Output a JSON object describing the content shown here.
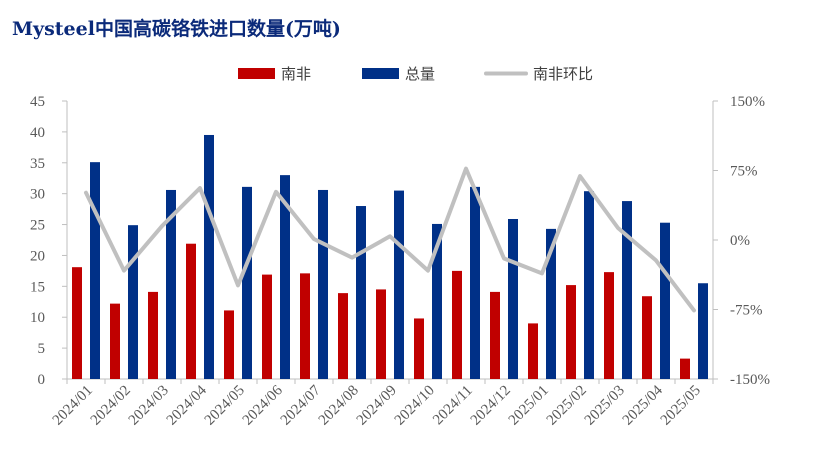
{
  "chart_data": {
    "type": "bar",
    "title": "Mysteel中国高碳铬铁进口数量(万吨)",
    "categories": [
      "2024/01",
      "2024/02",
      "2024/03",
      "2024/04",
      "2024/05",
      "2024/06",
      "2024/07",
      "2024/08",
      "2024/09",
      "2024/10",
      "2024/11",
      "2024/12",
      "2025/01",
      "2025/02",
      "2025/03",
      "2025/04",
      "2025/05"
    ],
    "series": [
      {
        "name": "南非",
        "kind": "bar",
        "axis": "left",
        "color": "#c00000",
        "values": [
          18.1,
          12.2,
          14.1,
          21.9,
          11.1,
          16.9,
          17.1,
          13.9,
          14.5,
          9.8,
          17.5,
          14.1,
          9.0,
          15.2,
          17.3,
          13.4,
          3.3
        ]
      },
      {
        "name": "总量",
        "kind": "bar",
        "axis": "left",
        "color": "#003087",
        "values": [
          35.1,
          24.9,
          30.6,
          39.5,
          31.1,
          33.0,
          30.6,
          28.0,
          30.5,
          25.1,
          31.1,
          25.9,
          24.3,
          30.4,
          28.8,
          25.3,
          15.5
        ]
      },
      {
        "name": "南非环比",
        "kind": "line",
        "axis": "right",
        "color": "#c0c0c0",
        "values": [
          51,
          -33,
          15,
          56,
          -49,
          52,
          1,
          -19,
          4,
          -33,
          77,
          -20,
          -36,
          69,
          13,
          -22,
          -76
        ]
      }
    ],
    "y_left": {
      "min": 0,
      "max": 45,
      "ticks": [
        "0",
        "5",
        "10",
        "15",
        "20",
        "25",
        "30",
        "35",
        "40",
        "45"
      ]
    },
    "y_right": {
      "min": -150,
      "max": 150,
      "ticks": [
        "-150%",
        "-75%",
        "0%",
        "75%",
        "150%"
      ]
    },
    "legend": [
      "南非",
      "总量",
      "南非环比"
    ],
    "legend_position": "top",
    "grid": false
  }
}
